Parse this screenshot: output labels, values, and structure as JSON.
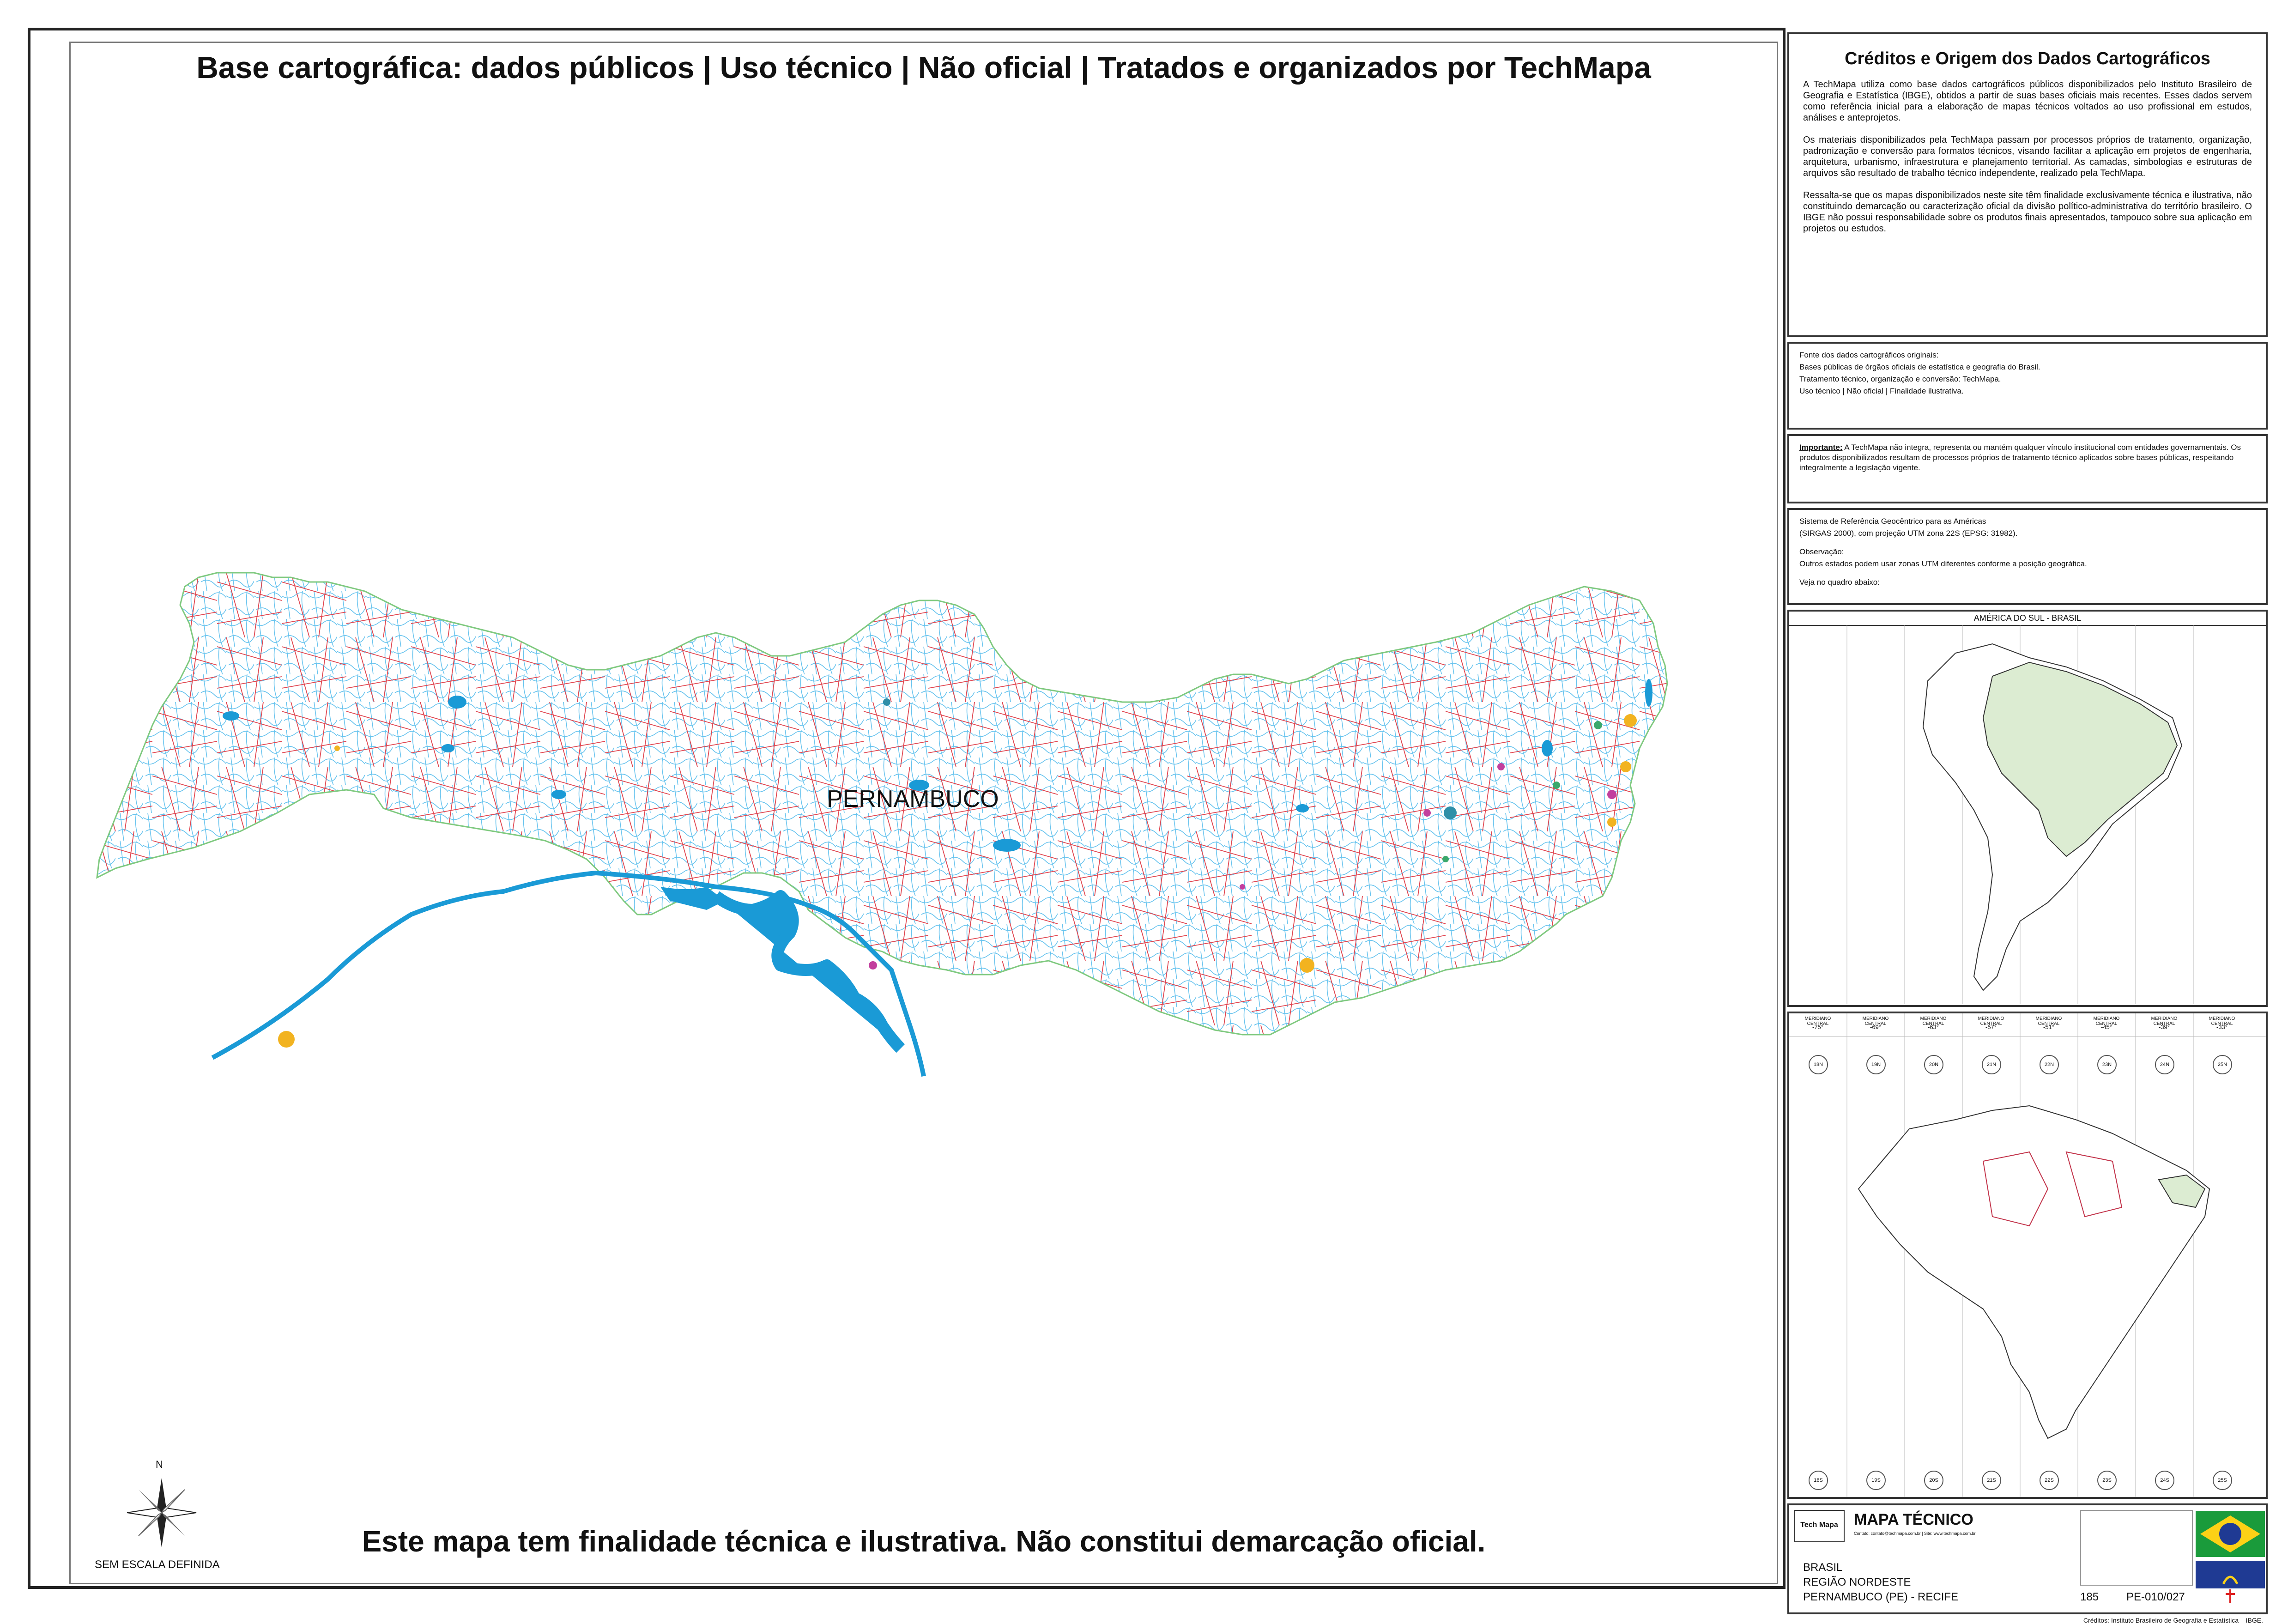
{
  "map": {
    "header_title": "Base cartográfica: dados públicos | Uso técnico | Não oficial | Tratados e organizados por TechMapa",
    "footer_note": "Este mapa tem finalidade técnica e ilustrativa. Não constitui demarcação oficial.",
    "state_label": "PERNAMBUCO",
    "scale_note": "SEM ESCALA DEFINIDA",
    "north_label": "N",
    "colors": {
      "boundary": "#7fc97f",
      "roads": "#e0454f",
      "rivers": "#4fb7e6",
      "reservoir": "#1a9ad6",
      "urban": "#f2b320",
      "border": "#222222"
    }
  },
  "credits": {
    "title": "Créditos e Origem dos Dados Cartográficos",
    "paragraphs": [
      "A TechMapa utiliza como base dados cartográficos públicos disponibilizados pelo Instituto Brasileiro de Geografia e Estatística (IBGE), obtidos a partir de suas bases oficiais mais recentes. Esses dados servem como referência inicial para a elaboração de mapas técnicos voltados ao uso profissional em estudos, análises e anteprojetos.",
      "Os materiais disponibilizados pela TechMapa passam por processos próprios de tratamento, organização, padronização e conversão para formatos técnicos, visando facilitar a aplicação em projetos de engenharia, arquitetura, urbanismo, infraestrutura e planejamento territorial. As camadas, simbologias e estruturas de arquivos são resultado de trabalho técnico independente, realizado pela TechMapa.",
      "Ressalta-se que os mapas disponibilizados neste site têm finalidade exclusivamente técnica e ilustrativa, não constituindo demarcação ou caracterização oficial da divisão político-administrativa do território brasileiro. O IBGE não possui responsabilidade sobre os produtos finais apresentados, tampouco sobre sua aplicação em projetos ou estudos."
    ]
  },
  "source": {
    "lines": [
      "Fonte dos dados cartográficos originais:",
      "Bases públicas de órgãos oficiais de estatística e geografia do Brasil.",
      "Tratamento técnico, organização e conversão: TechMapa.",
      "Uso técnico | Não oficial | Finalidade ilustrativa."
    ]
  },
  "important": {
    "label": "Importante:",
    "text": "A TechMapa não integra, representa ou mantém qualquer vínculo institucional com entidades governamentais. Os produtos disponibilizados resultam de processos próprios de tratamento técnico aplicados sobre bases públicas, respeitando integralmente a legislação vigente."
  },
  "crs": {
    "lines": [
      "Sistema de Referência Geocêntrico para as Américas",
      "(SIRGAS 2000), com projeção UTM zona 22S (EPSG: 31982).",
      "",
      "Observação:",
      "Outros estados podem usar zonas UTM diferentes conforme a posição geográfica.",
      "",
      "Veja no quadro abaixo:"
    ]
  },
  "inset": {
    "south_america_title": "AMÉRICA DO SUL - BRASIL",
    "meridian_label": "MERIDIANO CENTRAL",
    "meridians": [
      "-75°",
      "-69°",
      "-63°",
      "-57°",
      "-51°",
      "-45°",
      "-39°",
      "-33°"
    ],
    "zones_north": [
      "18N",
      "19N",
      "20N",
      "21N",
      "22N",
      "23N",
      "24N",
      "25N"
    ],
    "zones_south": [
      "18S",
      "19S",
      "20S",
      "21S",
      "22S",
      "23S",
      "24S",
      "25S"
    ]
  },
  "title_block": {
    "logo_text": "Tech Mapa",
    "product": "MAPA TÉCNICO",
    "contact": "Contato: contato@techmapa.com.br | Site: www.techmapa.com.br",
    "location_lines": [
      "BRASIL",
      "REGIÃO NORDESTE",
      "PERNAMBUCO (PE) - RECIFE"
    ],
    "number": "185",
    "code": "PE-010/027",
    "footer_credit": "Créditos: Instituto Brasileiro de Geografia e Estatística – IBGE."
  }
}
